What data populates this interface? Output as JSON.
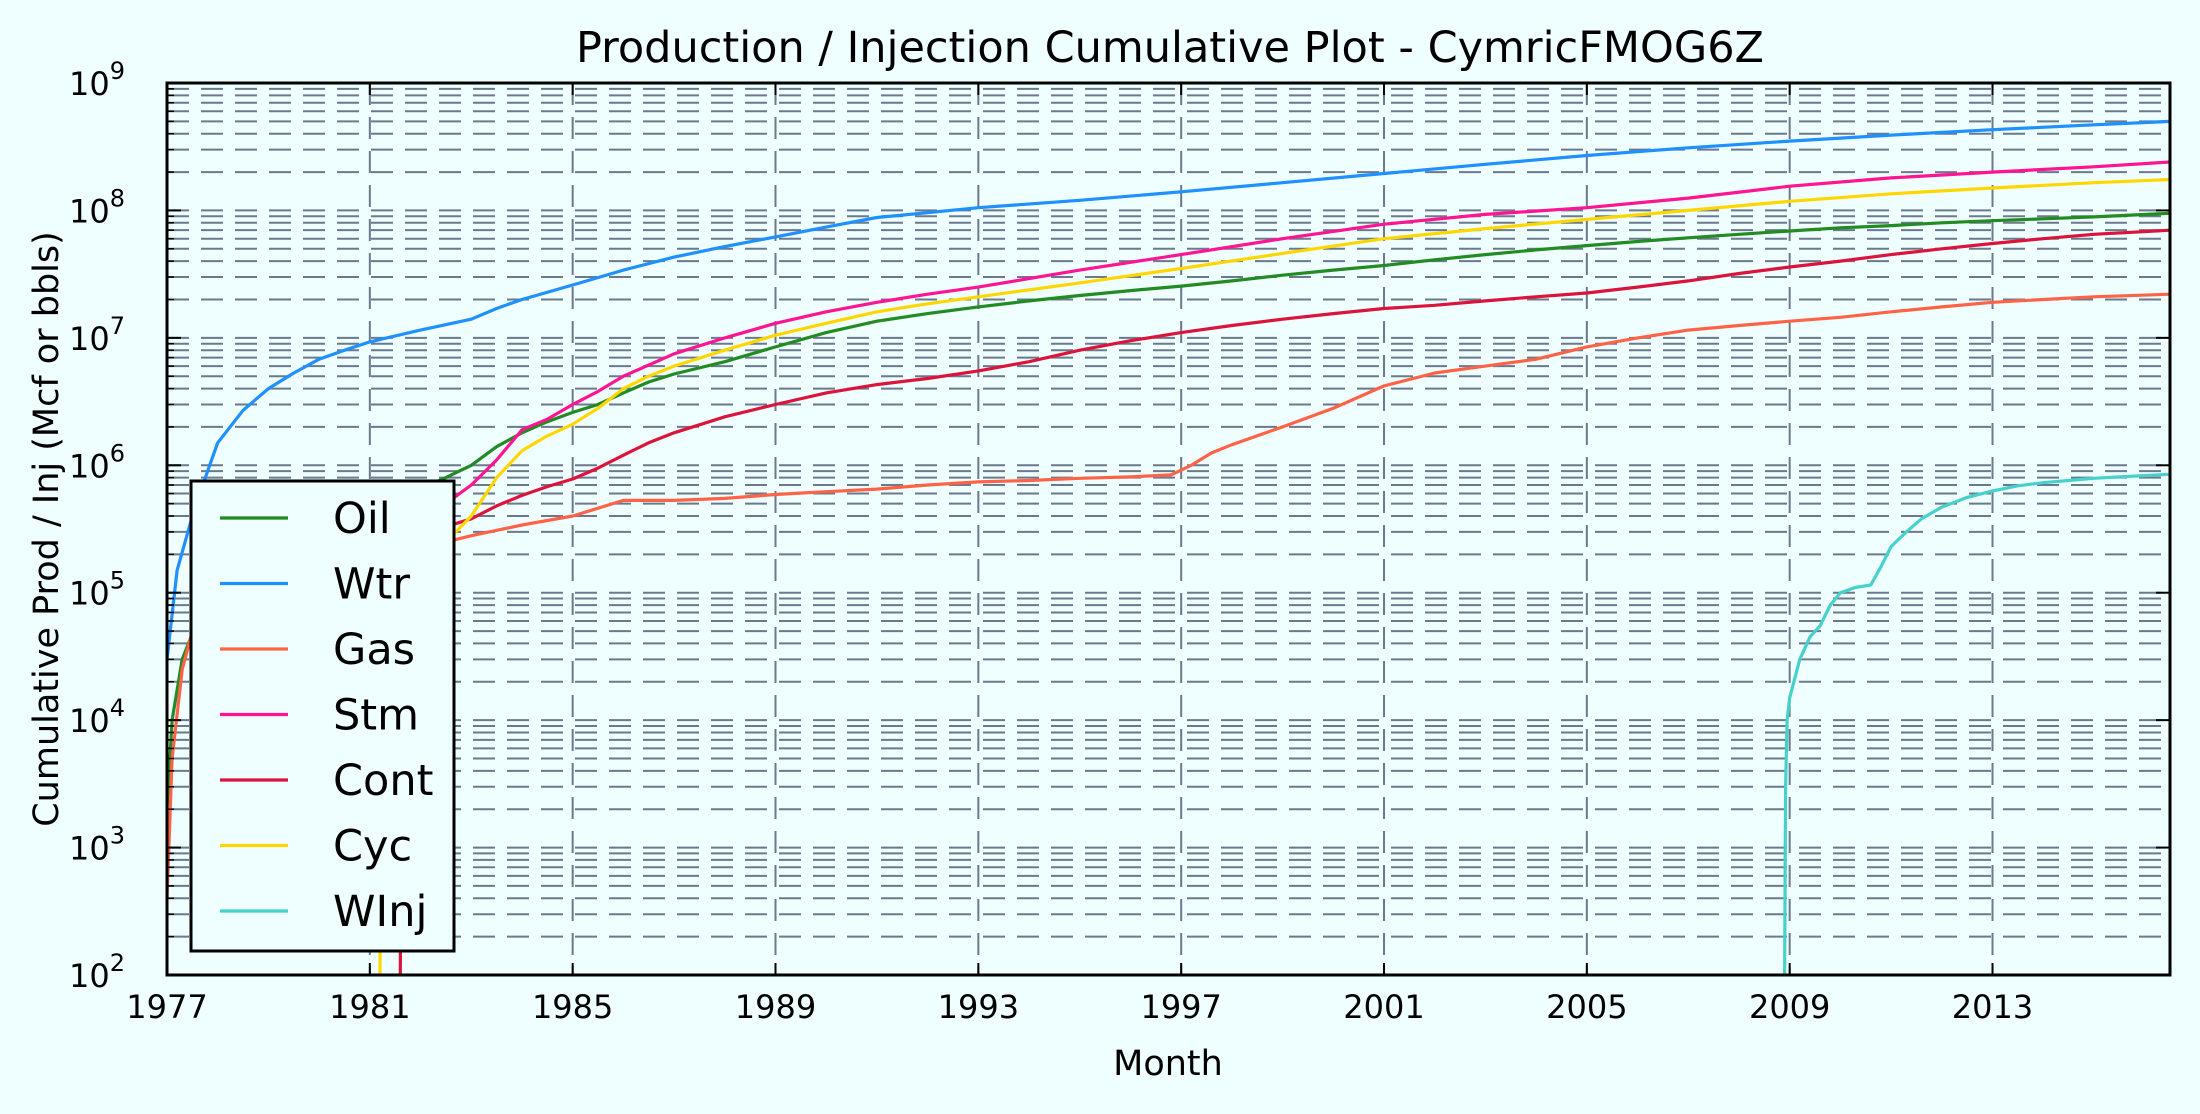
{
  "chart_data": {
    "type": "line",
    "title": "Production / Injection Cumulative Plot - CymricFMOG6Z",
    "xlabel": "Month",
    "ylabel": "Cumulative Prod / Inj (Mcf or bbls)",
    "xlim": [
      1977,
      2016.5
    ],
    "ylim": [
      100,
      1000000000
    ],
    "yscale": "log",
    "xticks": [
      "1977",
      "1981",
      "1985",
      "1989",
      "1993",
      "1997",
      "2001",
      "2005",
      "2009",
      "2013"
    ],
    "yticks": [
      {
        "base": "10",
        "exp": "2"
      },
      {
        "base": "10",
        "exp": "3"
      },
      {
        "base": "10",
        "exp": "4"
      },
      {
        "base": "10",
        "exp": "5"
      },
      {
        "base": "10",
        "exp": "6"
      },
      {
        "base": "10",
        "exp": "7"
      },
      {
        "base": "10",
        "exp": "8"
      },
      {
        "base": "10",
        "exp": "9"
      }
    ],
    "grid": true,
    "legend_position": "bottom-left",
    "series": [
      {
        "name": "Oil",
        "color": "#228b22",
        "x": [
          1977.0,
          1977.1,
          1977.3,
          1977.6,
          1978.0,
          1978.5,
          1979.0,
          1979.5,
          1980.0,
          1980.5,
          1981.0,
          1981.5,
          1982.0,
          1982.5,
          1983.0,
          1983.5,
          1984.0,
          1984.5,
          1985.0,
          1985.5,
          1986.0,
          1986.5,
          1987.0,
          1988.0,
          1989.0,
          1990.0,
          1991.0,
          1992.0,
          1993.0,
          1994.0,
          1995.0,
          1996.0,
          1997.0,
          1998.0,
          1999.0,
          2000.0,
          2001.0,
          2002.0,
          2003.0,
          2004.0,
          2005.0,
          2006.0,
          2007.0,
          2008.0,
          2009.0,
          2010.0,
          2011.0,
          2012.0,
          2013.0,
          2014.0,
          2015.0,
          2016.5
        ],
        "y": [
          2000,
          10000,
          30000,
          60000,
          100000,
          150000,
          200000,
          250000,
          300000,
          380000,
          450000,
          550000,
          650000,
          800000,
          1000000,
          1400000,
          1800000,
          2200000,
          2600000,
          3000000,
          3700000,
          4500000,
          5200000,
          6500000,
          8500000,
          11000000,
          13500000,
          15500000,
          17500000,
          19500000,
          21500000,
          23500000,
          25500000,
          28000000,
          31000000,
          34000000,
          37000000,
          41000000,
          45000000,
          49000000,
          53000000,
          57000000,
          61000000,
          65000000,
          69000000,
          73000000,
          76000000,
          80000000,
          83000000,
          86000000,
          89000000,
          95000000
        ]
      },
      {
        "name": "Wtr",
        "color": "#1e90ff",
        "x": [
          1977.0,
          1977.2,
          1977.5,
          1977.8,
          1978.0,
          1978.5,
          1979.0,
          1979.5,
          1980.0,
          1980.5,
          1981.0,
          1982.0,
          1983.0,
          1983.5,
          1984.0,
          1985.0,
          1986.0,
          1987.0,
          1988.0,
          1989.0,
          1990.0,
          1991.0,
          1992.0,
          1993.0,
          1995.0,
          1997.0,
          1999.0,
          2001.0,
          2003.0,
          2005.0,
          2007.0,
          2009.0,
          2011.0,
          2013.0,
          2015.0,
          2016.5
        ],
        "y": [
          30000,
          150000,
          400000,
          900000,
          1500000,
          2700000,
          4000000,
          5300000,
          6800000,
          8000000,
          9300000,
          11500000,
          14000000,
          17000000,
          20000000,
          26000000,
          34000000,
          43000000,
          52000000,
          62000000,
          74000000,
          88000000,
          96000000,
          105000000,
          120000000,
          140000000,
          165000000,
          195000000,
          230000000,
          270000000,
          310000000,
          350000000,
          390000000,
          430000000,
          470000000,
          500000000
        ]
      },
      {
        "name": "Gas",
        "color": "#ff6347",
        "x": [
          1977.0,
          1977.1,
          1977.3,
          1977.5,
          1978.0,
          1978.5,
          1979.0,
          1980.0,
          1981.0,
          1982.0,
          1982.5,
          1983.0,
          1984.0,
          1985.0,
          1986.0,
          1987.0,
          1988.0,
          1989.0,
          1990.0,
          1991.0,
          1992.0,
          1993.0,
          1994.0,
          1995.0,
          1996.0,
          1996.8,
          1997.2,
          1997.6,
          1998.0,
          1999.0,
          2000.0,
          2001.0,
          2002.0,
          2003.0,
          2004.0,
          2005.0,
          2006.0,
          2007.0,
          2008.0,
          2009.0,
          2010.0,
          2011.0,
          2012.0,
          2013.0,
          2014.0,
          2015.0,
          2016.5
        ],
        "y": [
          400,
          5000,
          25000,
          50000,
          70000,
          90000,
          110000,
          140000,
          170000,
          210000,
          250000,
          280000,
          340000,
          400000,
          530000,
          530000,
          550000,
          590000,
          620000,
          650000,
          700000,
          740000,
          760000,
          790000,
          810000,
          840000,
          1000000,
          1250000,
          1450000,
          2000000,
          2800000,
          4200000,
          5300000,
          6000000,
          6800000,
          8500000,
          10000000,
          11500000,
          12500000,
          13500000,
          14500000,
          16000000,
          17500000,
          19000000,
          20000000,
          21000000,
          22000000
        ]
      },
      {
        "name": "Stm",
        "color": "#ff1493",
        "x": [
          1981.0,
          1981.5,
          1982.0,
          1982.5,
          1983.0,
          1983.5,
          1984.0,
          1984.5,
          1985.0,
          1985.5,
          1986.0,
          1987.0,
          1988.0,
          1989.0,
          1990.0,
          1991.0,
          1992.0,
          1993.0,
          1995.0,
          1997.0,
          1999.0,
          2001.0,
          2003.0,
          2005.0,
          2007.0,
          2009.0,
          2011.0,
          2013.0,
          2015.0,
          2016.5
        ],
        "y": [
          300000,
          350000,
          400000,
          500000,
          700000,
          1100000,
          1900000,
          2300000,
          3000000,
          3800000,
          5000000,
          7500000,
          10000000,
          13000000,
          16000000,
          19000000,
          22000000,
          25000000,
          34000000,
          45000000,
          60000000,
          78000000,
          93000000,
          105000000,
          125000000,
          155000000,
          180000000,
          200000000,
          220000000,
          240000000
        ]
      },
      {
        "name": "Cont",
        "color": "#dc143c",
        "x": [
          1981.6,
          1981.62,
          1981.7,
          1982.0,
          1982.5,
          1983.0,
          1983.5,
          1984.0,
          1984.5,
          1985.0,
          1985.5,
          1986.0,
          1986.5,
          1987.0,
          1988.0,
          1989.0,
          1990.0,
          1991.0,
          1992.0,
          1993.0,
          1994.0,
          1995.0,
          1996.0,
          1997.0,
          1998.0,
          1999.0,
          2000.0,
          2001.0,
          2002.0,
          2003.0,
          2004.0,
          2005.0,
          2006.0,
          2007.0,
          2008.0,
          2009.0,
          2010.0,
          2011.0,
          2012.0,
          2013.0,
          2014.0,
          2015.0,
          2016.5
        ],
        "y": [
          100,
          5000,
          200000,
          280000,
          330000,
          380000,
          480000,
          580000,
          680000,
          780000,
          950000,
          1200000,
          1500000,
          1800000,
          2400000,
          3000000,
          3700000,
          4300000,
          4800000,
          5500000,
          6500000,
          8000000,
          9500000,
          11000000,
          12500000,
          14000000,
          15500000,
          17000000,
          18000000,
          19500000,
          21000000,
          22500000,
          25000000,
          28000000,
          32000000,
          36000000,
          40000000,
          45000000,
          50000000,
          55000000,
          60000000,
          65000000,
          70000000
        ]
      },
      {
        "name": "Cyc",
        "color": "#ffd700",
        "x": [
          1981.2,
          1981.22,
          1981.3,
          1982.0,
          1982.5,
          1983.0,
          1983.5,
          1984.0,
          1984.5,
          1985.0,
          1985.5,
          1986.0,
          1986.5,
          1987.0,
          1988.0,
          1989.0,
          1990.0,
          1991.0,
          1992.0,
          1993.0,
          1995.0,
          1997.0,
          1999.0,
          2001.0,
          2003.0,
          2005.0,
          2007.0,
          2009.0,
          2011.0,
          2013.0,
          2015.0,
          2016.5
        ],
        "y": [
          100,
          10000,
          150000,
          200000,
          250000,
          400000,
          800000,
          1300000,
          1700000,
          2100000,
          2800000,
          4000000,
          5000000,
          6000000,
          8000000,
          10500000,
          13000000,
          16000000,
          18500000,
          21000000,
          27000000,
          35000000,
          46000000,
          60000000,
          72000000,
          85000000,
          100000000,
          118000000,
          135000000,
          150000000,
          165000000,
          175000000
        ]
      },
      {
        "name": "WInj",
        "color": "#48d1cc",
        "x": [
          2008.9,
          2008.92,
          2008.95,
          2009.0,
          2009.2,
          2009.4,
          2009.6,
          2009.8,
          2010.0,
          2010.3,
          2010.6,
          2010.8,
          2011.0,
          2011.3,
          2011.6,
          2012.0,
          2012.5,
          2013.0,
          2013.5,
          2014.0,
          2014.5,
          2015.0,
          2015.5,
          2016.5
        ],
        "y": [
          100,
          3000,
          10000,
          15000,
          30000,
          45000,
          55000,
          80000,
          100000,
          110000,
          115000,
          160000,
          230000,
          300000,
          380000,
          470000,
          560000,
          630000,
          690000,
          730000,
          760000,
          790000,
          810000,
          850000
        ]
      }
    ]
  }
}
